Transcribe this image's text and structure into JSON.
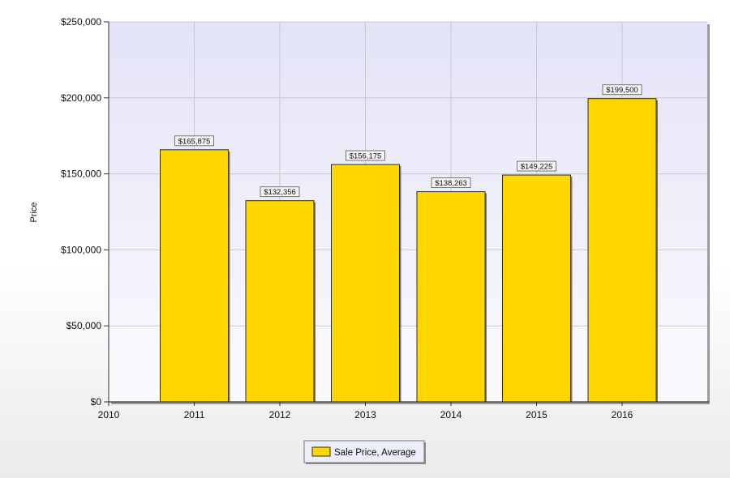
{
  "chart_data": {
    "type": "bar",
    "ylabel": "Price",
    "xlabel": "",
    "categories": [
      "2011",
      "2012",
      "2013",
      "2014",
      "2015",
      "2016"
    ],
    "x_tick_labels": [
      "2010",
      "2011",
      "2012",
      "2013",
      "2014",
      "2015",
      "2016"
    ],
    "series": [
      {
        "name": "Sale Price, Average",
        "values": [
          165875,
          132356,
          156175,
          138263,
          149225,
          199500
        ],
        "data_labels": [
          "$165,875",
          "$132,356",
          "$156,175",
          "$138,263",
          "$149,225",
          "$199,500"
        ]
      }
    ],
    "ylim": [
      0,
      250000
    ],
    "y_tick_values": [
      0,
      50000,
      100000,
      150000,
      200000,
      250000
    ],
    "y_tick_labels": [
      "$0",
      "$50,000",
      "$100,000",
      "$150,000",
      "$200,000",
      "$250,000"
    ],
    "grid": true,
    "legend_position": "bottom-center",
    "colors": {
      "bar_fill": "#ffd700",
      "bar_stroke": "#2b2b2b",
      "plot_bg_top": "#e3e3f7",
      "plot_bg_bottom": "#fbfbfe",
      "grid": "#c8c8d2"
    }
  }
}
